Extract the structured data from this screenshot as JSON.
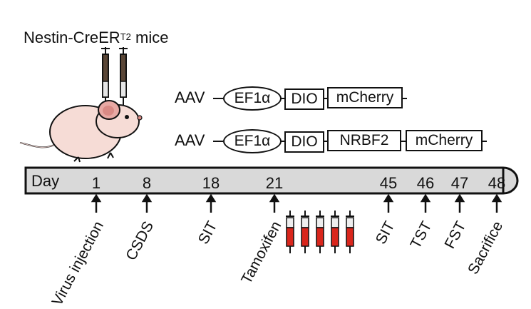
{
  "title": {
    "main": "Nestin-CreER",
    "sup": "T2",
    "suffix": " mice"
  },
  "constructs": [
    {
      "prefix": "AAV",
      "elements": [
        "EF1α",
        "DIO",
        "mCherry"
      ]
    },
    {
      "prefix": "AAV",
      "elements": [
        "EF1α",
        "DIO",
        "NRBF2",
        "mCherry"
      ]
    }
  ],
  "timeline": {
    "axis_label": "Day",
    "days": [
      "1",
      "8",
      "18",
      "21",
      "45",
      "46",
      "47",
      "48"
    ],
    "events": [
      "Virus injection",
      "CSDS",
      "SIT",
      "Tamoxifen",
      "SIT",
      "TST",
      "FST",
      "Sacrifice"
    ],
    "bar_color": "#d9d9d9",
    "syringe_fill_color": "#d9261c"
  }
}
